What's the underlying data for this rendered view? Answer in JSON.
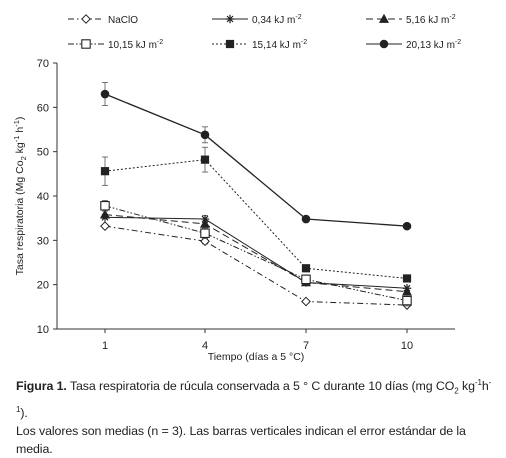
{
  "chart_data": {
    "type": "line",
    "x": [
      1,
      4,
      7,
      10
    ],
    "xticks": [
      "1",
      "4",
      "7",
      "10"
    ],
    "xlabel": "Tiempo (días a 5 °C)",
    "ylabel": "Tasa respiratoria (Mg Co",
    "ylabel_sub1": "2",
    "ylabel_mid": " kg",
    "ylabel_sup1": "-1",
    "ylabel_mid2": " h",
    "ylabel_sup2": "-1",
    "ylabel_end": ")",
    "ylim": [
      10,
      70
    ],
    "yticks": [
      10,
      20,
      30,
      40,
      50,
      60,
      70
    ],
    "grid": false,
    "legend_position": "top",
    "series": [
      {
        "name": "NaClO",
        "marker": "diamond-open",
        "dash": "dashdot",
        "values": [
          33.2,
          29.8,
          16.2,
          15.4
        ],
        "errors": [
          0,
          0.6,
          0,
          0
        ]
      },
      {
        "name": "0,34 kJ m",
        "name_sup": "-2",
        "marker": "asterisk",
        "dash": "solid",
        "values": [
          35.2,
          34.8,
          20.5,
          19.2
        ],
        "errors": [
          0,
          0.8,
          0,
          0
        ]
      },
      {
        "name": "5,16 kJ m",
        "name_sup": "-2",
        "marker": "triangle",
        "dash": "longdash",
        "values": [
          35.8,
          33.7,
          20.5,
          18.4
        ],
        "errors": [
          0,
          0.6,
          0,
          0
        ]
      },
      {
        "name": "10,15 kJ m",
        "name_sup": "-2",
        "marker": "square-open",
        "dash": "dashdotdot",
        "values": [
          37.8,
          31.6,
          21.2,
          16.4
        ],
        "errors": [
          1.2,
          1.2,
          1.0,
          1.2
        ]
      },
      {
        "name": "15,14 kJ m",
        "name_sup": "-2",
        "marker": "square",
        "dash": "dotted",
        "values": [
          45.6,
          48.2,
          23.7,
          21.4
        ],
        "errors": [
          3.2,
          2.8,
          0,
          0
        ]
      },
      {
        "name": "20,13 kJ m",
        "name_sup": "-2",
        "marker": "circle",
        "dash": "solid",
        "values": [
          63.0,
          53.8,
          34.8,
          33.2
        ],
        "errors": [
          2.6,
          1.8,
          0,
          0
        ]
      }
    ]
  },
  "caption": {
    "label": "Figura 1.",
    "text_a": " Tasa respiratoria de rúcula conservada a 5 ° C durante 10 días (mg CO",
    "sub": "2",
    "text_b": " kg",
    "sup1": "-1",
    "text_c": "h",
    "sup2": "-1",
    "text_d": ").",
    "line2": "Los valores son medias (n = 3). Las barras verticales indican el error estándar de la media."
  }
}
